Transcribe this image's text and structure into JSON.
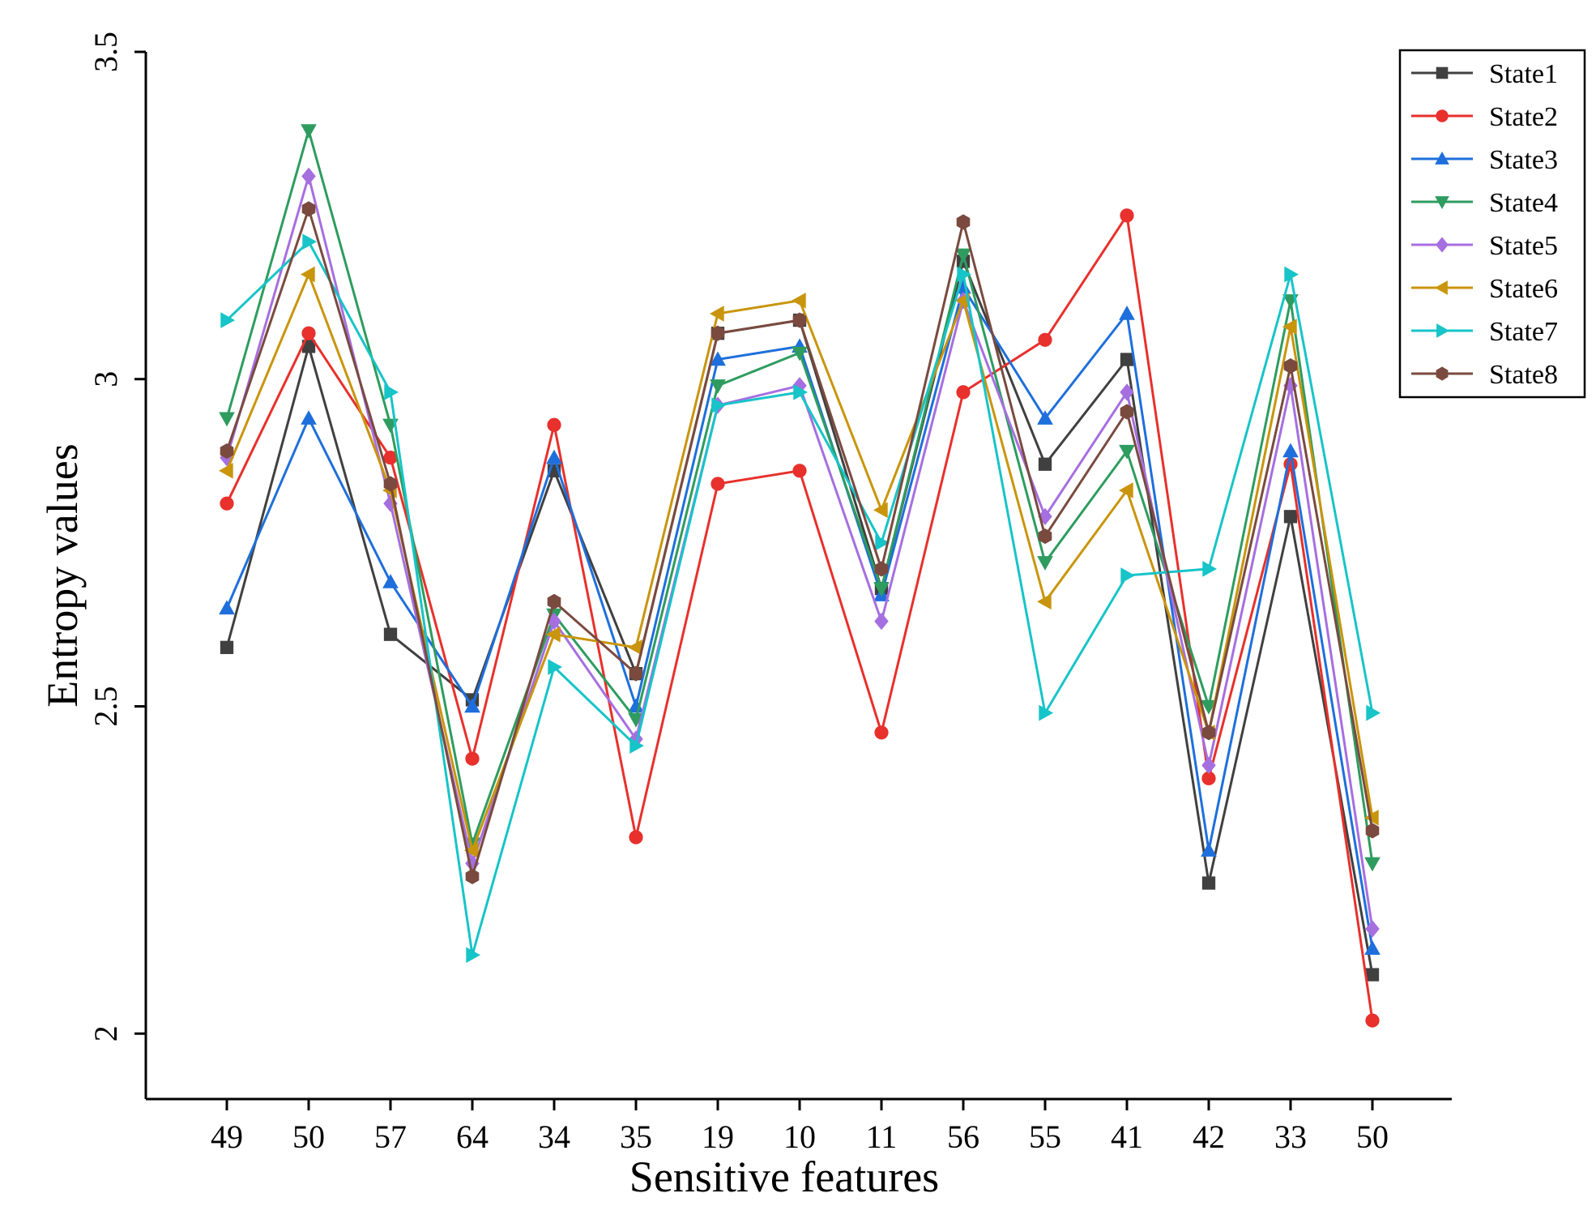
{
  "chart_data": {
    "type": "line",
    "title": "",
    "xlabel": "Sensitive features",
    "ylabel": "Entropy values",
    "ylim": [
      1.9,
      3.5
    ],
    "yticks": [
      2,
      2.5,
      3,
      3.5
    ],
    "ytick_labels": [
      "2",
      "2.5",
      "3",
      "3.5"
    ],
    "categories": [
      "49",
      "50",
      "57",
      "64",
      "34",
      "35",
      "19",
      "10",
      "11",
      "56",
      "55",
      "41",
      "42",
      "33",
      "50"
    ],
    "grid": false,
    "legend_position": "top-right",
    "series": [
      {
        "name": "State1",
        "color": "#404040",
        "marker": "square",
        "values": [
          2.59,
          3.05,
          2.61,
          2.51,
          2.86,
          2.55,
          3.07,
          3.09,
          2.68,
          3.18,
          2.87,
          3.03,
          2.23,
          2.79,
          2.09
        ]
      },
      {
        "name": "State2",
        "color": "#e8302c",
        "marker": "circle",
        "values": [
          2.81,
          3.07,
          2.88,
          2.42,
          2.93,
          2.3,
          2.84,
          2.86,
          2.46,
          2.98,
          3.06,
          3.25,
          2.39,
          2.87,
          2.02
        ]
      },
      {
        "name": "State3",
        "color": "#1e6fdc",
        "marker": "triangle-up",
        "values": [
          2.65,
          2.94,
          2.69,
          2.5,
          2.88,
          2.5,
          3.03,
          3.05,
          2.67,
          3.14,
          2.94,
          3.1,
          2.28,
          2.89,
          2.13
        ]
      },
      {
        "name": "State4",
        "color": "#2e9c5f",
        "marker": "triangle-down",
        "values": [
          2.94,
          3.38,
          2.93,
          2.29,
          2.64,
          2.48,
          2.99,
          3.04,
          2.68,
          3.19,
          2.72,
          2.89,
          2.5,
          3.12,
          2.26
        ]
      },
      {
        "name": "State5",
        "color": "#a66fe0",
        "marker": "diamond",
        "values": [
          2.88,
          3.31,
          2.81,
          2.26,
          2.63,
          2.45,
          2.96,
          2.99,
          2.63,
          3.12,
          2.79,
          2.98,
          2.41,
          2.99,
          2.16
        ]
      },
      {
        "name": "State6",
        "color": "#c9950c",
        "marker": "triangle-left",
        "values": [
          2.86,
          3.16,
          2.83,
          2.28,
          2.61,
          2.59,
          3.1,
          3.12,
          2.8,
          3.12,
          2.66,
          2.83,
          2.46,
          3.08,
          2.33
        ]
      },
      {
        "name": "State7",
        "color": "#17c4c8",
        "marker": "triangle-right",
        "values": [
          3.09,
          3.21,
          2.98,
          2.12,
          2.56,
          2.44,
          2.96,
          2.98,
          2.75,
          3.16,
          2.49,
          2.7,
          2.71,
          3.16,
          2.49
        ]
      },
      {
        "name": "State8",
        "color": "#7a4a3f",
        "marker": "hexagon",
        "values": [
          2.89,
          3.26,
          2.84,
          2.24,
          2.66,
          2.55,
          3.07,
          3.09,
          2.71,
          3.24,
          2.76,
          2.95,
          2.46,
          3.02,
          2.31
        ]
      }
    ]
  }
}
